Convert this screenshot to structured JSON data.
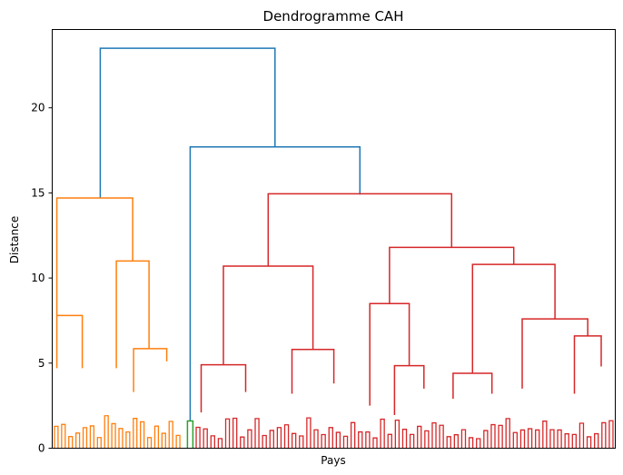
{
  "chart_data": {
    "type": "dendrogram",
    "title": "Dendrogramme CAH",
    "xlabel": "Pays",
    "ylabel": "Distance",
    "ylim": [
      0,
      24.6
    ],
    "yticks": [
      0,
      5,
      10,
      15,
      20
    ],
    "colors": {
      "orange": "#ff7f0e",
      "green": "#2ca02c",
      "red": "#d62728",
      "blue": "#1f77b4"
    },
    "clusters": [
      {
        "name": "orange",
        "leaves": 37,
        "merge_height": 14.7
      },
      {
        "name": "green",
        "leaves": 2,
        "merge_height": 1.6
      },
      {
        "name": "red",
        "leaves": 114,
        "merge_height": 14.9
      }
    ],
    "top_merges": [
      {
        "height": 23.5,
        "joins": "orange + (green + red)"
      },
      {
        "height": 17.7,
        "joins": "green + red"
      },
      {
        "height": 14.9,
        "joins": "red"
      },
      {
        "height": 14.7,
        "joins": "orange"
      }
    ],
    "links": [
      {
        "c": "blue",
        "x1": 110.4,
        "x2": 302.8,
        "y": 23.5,
        "lh": 14.7,
        "rh": 17.7
      },
      {
        "c": "blue",
        "x1": 209.4,
        "x2": 396.3,
        "y": 17.7,
        "lh": 1.6,
        "rh": 14.9
      },
      {
        "c": "red",
        "x1": 295.3,
        "x2": 497.3,
        "y": 14.95,
        "lh": 10.7,
        "rh": 11.8
      },
      {
        "c": "red",
        "x1": 246.0,
        "x2": 344.6,
        "y": 10.7,
        "lh": 4.9,
        "rh": 5.8
      },
      {
        "c": "red",
        "x1": 221.5,
        "x2": 270.5,
        "y": 4.9,
        "lh": 2.1,
        "rh": 3.3
      },
      {
        "c": "red",
        "x1": 321.5,
        "x2": 367.6,
        "y": 5.8,
        "lh": 3.2,
        "rh": 3.8
      },
      {
        "c": "red",
        "x1": 428.9,
        "x2": 565.7,
        "y": 11.8,
        "lh": 8.5,
        "rh": 10.8
      },
      {
        "c": "red",
        "x1": 407.2,
        "x2": 450.6,
        "y": 8.5,
        "lh": 2.5,
        "rh": 4.85
      },
      {
        "c": "red",
        "x1": 434.4,
        "x2": 466.8,
        "y": 4.85,
        "lh": 1.95,
        "rh": 3.5
      },
      {
        "c": "red",
        "x1": 520.3,
        "x2": 611.1,
        "y": 10.8,
        "lh": 4.4,
        "rh": 7.6
      },
      {
        "c": "red",
        "x1": 498.9,
        "x2": 541.7,
        "y": 4.4,
        "lh": 2.9,
        "rh": 3.2
      },
      {
        "c": "red",
        "x1": 575.0,
        "x2": 647.2,
        "y": 7.6,
        "lh": 3.5,
        "rh": 6.6
      },
      {
        "c": "red",
        "x1": 632.5,
        "x2": 662.0,
        "y": 6.6,
        "lh": 3.2,
        "rh": 4.8
      },
      {
        "c": "orange",
        "x1": 62.6,
        "x2": 146.1,
        "y": 14.7,
        "lh": 7.8,
        "rh": 11.0
      },
      {
        "c": "orange",
        "x1": 62.6,
        "x2": 90.6,
        "y": 7.8,
        "lh": 4.7,
        "rh": 4.7
      },
      {
        "c": "orange",
        "x1": 128.1,
        "x2": 164.1,
        "y": 11.0,
        "lh": 4.7,
        "rh": 5.85
      },
      {
        "c": "orange",
        "x1": 147.1,
        "x2": 183.6,
        "y": 5.85,
        "lh": 3.3,
        "rh": 5.1
      },
      {
        "c": "green",
        "x1": 206.4,
        "x2": 212.4,
        "y": 1.6,
        "lh": 0,
        "rh": 0
      }
    ]
  }
}
